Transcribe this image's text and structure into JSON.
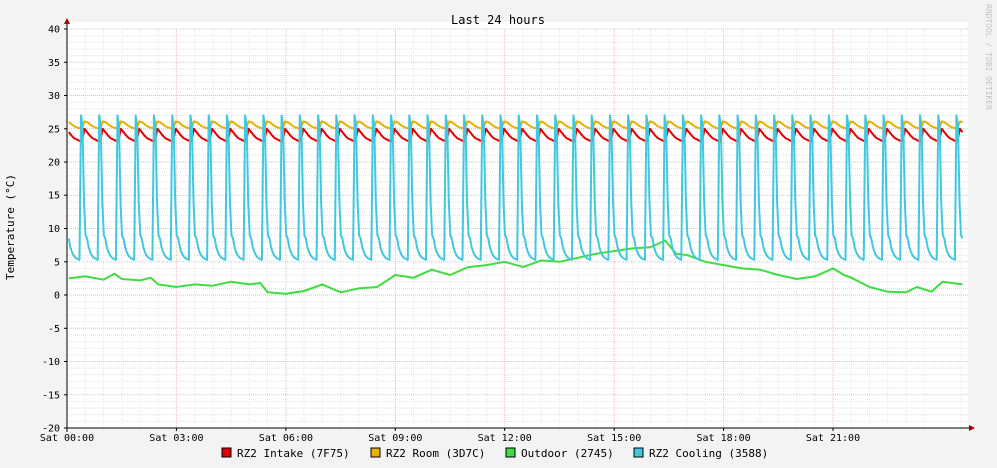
{
  "chart_data": {
    "type": "line",
    "title": "Last 24 hours",
    "ylabel": "Temperature (°C)",
    "xlabel": "",
    "watermark": "RRDTOOL / TOBI OETIKER",
    "ylim": [
      -20,
      40
    ],
    "xlim_hours": [
      0,
      24.7
    ],
    "y_ticks": [
      "40",
      "35",
      "30",
      "25",
      "20",
      "15",
      "10",
      "5",
      "0",
      "-5",
      "-10",
      "-15",
      "-20"
    ],
    "x_ticks": [
      {
        "hour": 0,
        "label": "Sat 00:00"
      },
      {
        "hour": 3,
        "label": "Sat 03:00"
      },
      {
        "hour": 6,
        "label": "Sat 06:00"
      },
      {
        "hour": 9,
        "label": "Sat 09:00"
      },
      {
        "hour": 12,
        "label": "Sat 12:00"
      },
      {
        "hour": 15,
        "label": "Sat 15:00"
      },
      {
        "hour": 18,
        "label": "Sat 18:00"
      },
      {
        "hour": 21,
        "label": "Sat 21:00"
      }
    ],
    "grid": true,
    "legend_position": "bottom",
    "series": [
      {
        "name": "RZ2 Intake (7F75)",
        "color": "#e00000",
        "cycle_hours": 0.5,
        "cycle_start_hour": 0.05,
        "cycle_end_hour": 24.55,
        "cycle_values": [
          24.5,
          24.0,
          23.6,
          23.4,
          23.2,
          23.1,
          25.0
        ]
      },
      {
        "name": "RZ2 Room (3D7C)",
        "color": "#e8b000",
        "cycle_hours": 0.5,
        "cycle_start_hour": 0.05,
        "cycle_end_hour": 24.55,
        "cycle_values": [
          26.0,
          25.7,
          25.4,
          25.2,
          25.1,
          25.0,
          26.1
        ]
      },
      {
        "name": "Outdoor (2745)",
        "color": "#40dd40",
        "x": [
          0.05,
          0.5,
          1.0,
          1.3,
          1.5,
          2.0,
          2.3,
          2.5,
          3.0,
          3.5,
          4.0,
          4.5,
          5.0,
          5.3,
          5.5,
          6.0,
          6.5,
          7.0,
          7.5,
          8.0,
          8.5,
          9.0,
          9.5,
          10.0,
          10.5,
          11.0,
          11.5,
          12.0,
          12.5,
          13.0,
          13.5,
          14.0,
          14.5,
          15.0,
          15.5,
          16.0,
          16.4,
          16.7,
          17.0,
          17.5,
          18.0,
          18.5,
          19.0,
          19.5,
          20.0,
          20.5,
          21.0,
          21.3,
          21.5,
          22.0,
          22.5,
          23.0,
          23.3,
          23.7,
          24.0,
          24.55
        ],
        "values": [
          2.5,
          2.8,
          2.3,
          3.2,
          2.4,
          2.2,
          2.6,
          1.6,
          1.2,
          1.6,
          1.4,
          2.0,
          1.6,
          1.8,
          0.4,
          0.2,
          0.6,
          1.6,
          0.4,
          1.0,
          1.2,
          3.0,
          2.6,
          3.8,
          3.0,
          4.2,
          4.5,
          5.0,
          4.2,
          5.2,
          5.0,
          5.6,
          6.2,
          6.6,
          7.0,
          7.2,
          8.2,
          6.2,
          6.0,
          5.0,
          4.5,
          4.0,
          3.8,
          3.0,
          2.4,
          2.8,
          4.0,
          3.0,
          2.6,
          1.2,
          0.5,
          0.4,
          1.2,
          0.5,
          2.0,
          1.6
        ]
      },
      {
        "name": "RZ2 Cooling (3588)",
        "color": "#40c8e0",
        "cycle_hours": 0.5,
        "cycle_start_hour": 0.05,
        "cycle_end_hour": 24.55,
        "cycle_values": [
          8.5,
          7.2,
          6.5,
          6.0,
          5.7,
          5.5,
          5.4,
          5.3,
          27.0,
          25.5,
          14.0,
          9.0
        ]
      }
    ]
  }
}
